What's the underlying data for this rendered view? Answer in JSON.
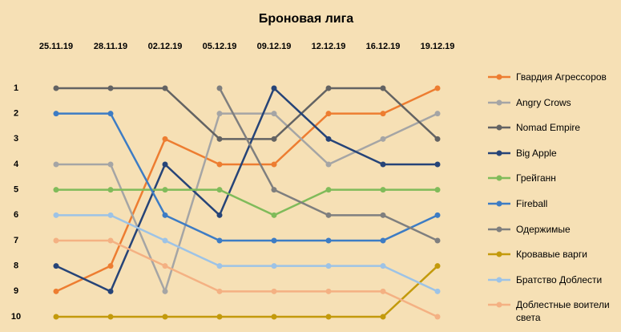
{
  "chart_data": {
    "type": "line",
    "title": "Броновая лига",
    "categories": [
      "25.11.19",
      "28.11.19",
      "02.12.19",
      "05.12.19",
      "09.12.19",
      "12.12.19",
      "16.12.19",
      "19.12.19"
    ],
    "ylim": [
      10,
      1
    ],
    "yticks": [
      1,
      2,
      3,
      4,
      5,
      6,
      7,
      8,
      9,
      10
    ],
    "series": [
      {
        "name": "Гвардия Агрессоров",
        "color": "#ed7d31",
        "values": [
          9,
          8,
          3,
          4,
          4,
          2,
          2,
          1
        ]
      },
      {
        "name": "Angry Crows",
        "color": "#a5a5a5",
        "values": [
          4,
          4,
          9,
          2,
          2,
          4,
          3,
          2
        ]
      },
      {
        "name": "Nomad Empire",
        "color": "#636363",
        "values": [
          1,
          1,
          1,
          3,
          3,
          1,
          1,
          3
        ]
      },
      {
        "name": "Big Apple",
        "color": "#264478",
        "values": [
          8,
          9,
          4,
          6,
          1,
          3,
          4,
          4
        ]
      },
      {
        "name": "Грейганн",
        "color": "#80bb5a",
        "values": [
          5,
          5,
          5,
          5,
          6,
          5,
          5,
          5
        ]
      },
      {
        "name": "Fireball",
        "color": "#3d7cc4",
        "values": [
          2,
          2,
          6,
          7,
          7,
          7,
          7,
          6
        ]
      },
      {
        "name": "Одержимые",
        "color": "#7f7f7f",
        "values": [
          null,
          null,
          null,
          1,
          5,
          6,
          6,
          7
        ]
      },
      {
        "name": "Кровавые варги",
        "color": "#c39a0c",
        "values": [
          10,
          10,
          10,
          10,
          10,
          10,
          10,
          8
        ]
      },
      {
        "name": "Братство Доблести",
        "color": "#9dc3e6",
        "values": [
          6,
          6,
          7,
          8,
          8,
          8,
          8,
          9
        ]
      },
      {
        "name": "Доблестные воители света",
        "color": "#f4b183",
        "values": [
          7,
          7,
          8,
          9,
          9,
          9,
          9,
          10
        ]
      }
    ]
  }
}
